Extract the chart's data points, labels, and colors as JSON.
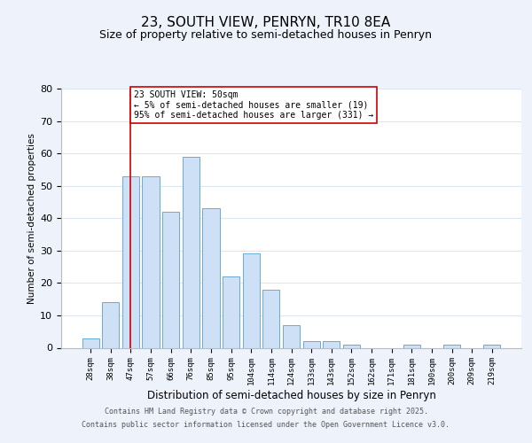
{
  "title": "23, SOUTH VIEW, PENRYN, TR10 8EA",
  "subtitle": "Size of property relative to semi-detached houses in Penryn",
  "xlabel": "Distribution of semi-detached houses by size in Penryn",
  "ylabel": "Number of semi-detached properties",
  "bar_labels": [
    "28sqm",
    "38sqm",
    "47sqm",
    "57sqm",
    "66sqm",
    "76sqm",
    "85sqm",
    "95sqm",
    "104sqm",
    "114sqm",
    "124sqm",
    "133sqm",
    "143sqm",
    "152sqm",
    "162sqm",
    "171sqm",
    "181sqm",
    "190sqm",
    "200sqm",
    "209sqm",
    "219sqm"
  ],
  "bar_values": [
    3,
    14,
    53,
    53,
    42,
    59,
    43,
    22,
    29,
    18,
    7,
    2,
    2,
    1,
    0,
    0,
    1,
    0,
    1,
    0,
    1
  ],
  "bar_color": "#cde0f5",
  "bar_edge_color": "#6aaad4",
  "vline_x": 2,
  "vline_color": "#cc0000",
  "annotation_title": "23 SOUTH VIEW: 50sqm",
  "annotation_line1": "← 5% of semi-detached houses are smaller (19)",
  "annotation_line2": "95% of semi-detached houses are larger (331) →",
  "ylim": [
    0,
    80
  ],
  "yticks": [
    0,
    10,
    20,
    30,
    40,
    50,
    60,
    70,
    80
  ],
  "background_color": "#eef2fb",
  "plot_bg_color": "#ffffff",
  "footer_line1": "Contains HM Land Registry data © Crown copyright and database right 2025.",
  "footer_line2": "Contains public sector information licensed under the Open Government Licence v3.0.",
  "title_fontsize": 11,
  "subtitle_fontsize": 9,
  "annotation_box_color": "#ffffff",
  "annotation_box_edge": "#cc0000",
  "grid_color": "#dde5f0"
}
